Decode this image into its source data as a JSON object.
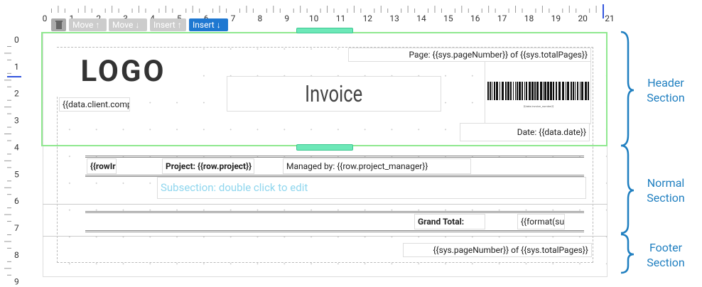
{
  "ruler": {
    "horizontal": [
      0,
      1,
      2,
      3,
      4,
      5,
      6,
      7,
      8,
      9,
      10,
      11,
      12,
      13,
      14,
      15,
      16,
      17,
      18,
      19,
      20,
      21
    ],
    "vertical": [
      0,
      1,
      2,
      3,
      4,
      5,
      6,
      7,
      8,
      9
    ]
  },
  "toolbar": {
    "buttons": [
      "Move",
      "Move",
      "Insert",
      "Insert"
    ]
  },
  "header": {
    "logo": "LOGO",
    "page": "Page: {{sys.pageNumber}} of {{sys.totalPages}}",
    "client": "{{data.client.comp",
    "title": "Invoice",
    "barcode": "{{data.invoice_number}}",
    "date": "Date: {{data.date}}"
  },
  "normal": {
    "row": "{{rowIr",
    "project": "Project: {{row.project}}",
    "manager": "Managed by: {{row.project_manager}}",
    "subsection": "Subsection: double click to edit",
    "grand_total": "Grand Total:",
    "total_value": "{{format(su"
  },
  "footer": {
    "page": "{{sys.pageNumber}} of {{sys.totalPages}}"
  },
  "sections": [
    "Header Section",
    "Normal Section",
    "Footer Section"
  ]
}
